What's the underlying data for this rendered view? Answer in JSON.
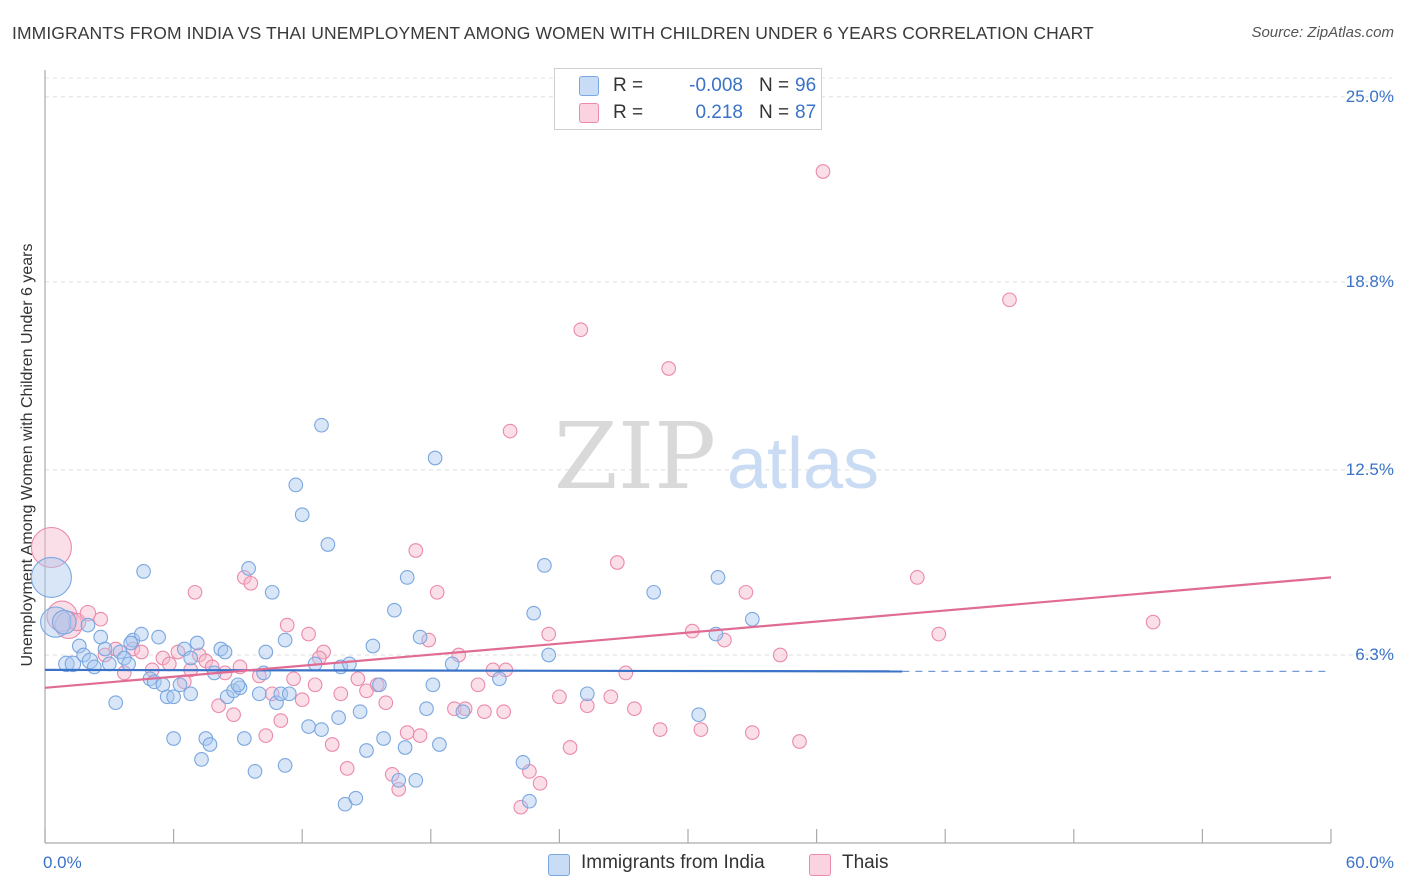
{
  "header": {
    "title": "IMMIGRANTS FROM INDIA VS THAI UNEMPLOYMENT AMONG WOMEN WITH CHILDREN UNDER 6 YEARS CORRELATION CHART",
    "source": "Source: ZipAtlas.com"
  },
  "watermark": {
    "zip": "ZIP",
    "atlas": "atlas"
  },
  "legend_top": {
    "r_label": "R =",
    "n_label": "N =",
    "rows": [
      {
        "r": "-0.008",
        "n": "96",
        "color": "#a9c8f0"
      },
      {
        "r": "0.218",
        "n": "87",
        "color": "#f5b8cb"
      }
    ]
  },
  "colors": {
    "india_fill": "#a9c8f0",
    "india_stroke": "#7ba7e0",
    "india_line": "#3a72c8",
    "thai_fill": "#f5b8cb",
    "thai_stroke": "#eb8aaa",
    "thai_line": "#e06c93",
    "tick_text": "#3a72c8"
  },
  "chart_data": {
    "type": "scatter",
    "title": "IMMIGRANTS FROM INDIA VS THAI UNEMPLOYMENT AMONG WOMEN WITH CHILDREN UNDER 6 YEARS CORRELATION CHART",
    "xlabel": "",
    "ylabel": "Unemployment Among Women with Children Under 6 years",
    "xlim": [
      0,
      60
    ],
    "ylim": [
      0,
      25.9
    ],
    "x_tick_labels": [
      "0.0%",
      "60.0%"
    ],
    "y_ticks": [
      6.3,
      12.5,
      18.8,
      25.0
    ],
    "y_tick_labels": [
      "6.3%",
      "12.5%",
      "18.8%",
      "25.0%"
    ],
    "grid": "horizontal dashed",
    "legend_position": "bottom",
    "series": [
      {
        "name": "Immigrants from India",
        "r": -0.008,
        "n": 96,
        "trend": {
          "x0": 0,
          "y0": 5.8,
          "x1": 40,
          "y1": 5.75,
          "dashed_to": 60
        },
        "points": [
          [
            0.3,
            8.9,
            1.6
          ],
          [
            0.5,
            7.4,
            1.3
          ],
          [
            0.9,
            7.4,
            1.1
          ],
          [
            1.0,
            6.0,
            0.9
          ],
          [
            1.3,
            6.0,
            0.9
          ],
          [
            1.6,
            6.6,
            0.8
          ],
          [
            1.8,
            6.3,
            0.8
          ],
          [
            2.1,
            6.1,
            0.9
          ],
          [
            2.3,
            5.9,
            0.8
          ],
          [
            2.6,
            6.9,
            0.8
          ],
          [
            2.8,
            6.5,
            0.8
          ],
          [
            3.3,
            4.7,
            0.8
          ],
          [
            3.5,
            6.4,
            0.8
          ],
          [
            3.7,
            6.2,
            0.8
          ],
          [
            3.9,
            6.0,
            0.8
          ],
          [
            4.1,
            6.8,
            0.8
          ],
          [
            4.5,
            7.0,
            0.8
          ],
          [
            4.6,
            9.1,
            0.8
          ],
          [
            4.9,
            5.5,
            0.8
          ],
          [
            5.1,
            5.4,
            0.8
          ],
          [
            5.3,
            6.9,
            0.8
          ],
          [
            5.5,
            5.3,
            0.8
          ],
          [
            5.7,
            4.9,
            0.8
          ],
          [
            6.0,
            4.9,
            0.8
          ],
          [
            6.0,
            3.5,
            0.8
          ],
          [
            6.3,
            5.3,
            0.8
          ],
          [
            6.5,
            6.5,
            0.8
          ],
          [
            6.8,
            5.0,
            0.8
          ],
          [
            7.1,
            6.7,
            0.8
          ],
          [
            7.3,
            2.8,
            0.8
          ],
          [
            7.5,
            3.5,
            0.8
          ],
          [
            7.7,
            3.3,
            0.8
          ],
          [
            7.9,
            5.7,
            0.8
          ],
          [
            8.2,
            6.5,
            0.8
          ],
          [
            8.4,
            6.4,
            0.8
          ],
          [
            8.5,
            4.9,
            0.8
          ],
          [
            8.8,
            5.1,
            0.8
          ],
          [
            9.1,
            5.2,
            0.8
          ],
          [
            9.3,
            3.5,
            0.8
          ],
          [
            9.5,
            9.2,
            0.8
          ],
          [
            9.8,
            2.4,
            0.8
          ],
          [
            10.0,
            5.0,
            0.8
          ],
          [
            10.2,
            5.7,
            0.8
          ],
          [
            10.3,
            6.4,
            0.8
          ],
          [
            10.6,
            8.4,
            0.8
          ],
          [
            10.8,
            4.7,
            0.8
          ],
          [
            11.0,
            5.0,
            0.8
          ],
          [
            11.2,
            2.6,
            0.8
          ],
          [
            11.4,
            5.0,
            0.8
          ],
          [
            11.7,
            12.0,
            0.8
          ],
          [
            12.0,
            11.0,
            0.8
          ],
          [
            12.3,
            3.9,
            0.8
          ],
          [
            12.6,
            6.0,
            0.8
          ],
          [
            12.9,
            3.8,
            0.8
          ],
          [
            12.9,
            14.0,
            0.8
          ],
          [
            13.2,
            10.0,
            0.8
          ],
          [
            13.7,
            4.2,
            0.8
          ],
          [
            13.8,
            5.9,
            0.8
          ],
          [
            14.0,
            1.3,
            0.8
          ],
          [
            14.2,
            6.0,
            0.8
          ],
          [
            14.5,
            1.5,
            0.8
          ],
          [
            15.0,
            3.1,
            0.8
          ],
          [
            15.3,
            6.6,
            0.8
          ],
          [
            15.6,
            5.3,
            0.8
          ],
          [
            15.8,
            3.5,
            0.8
          ],
          [
            16.3,
            7.8,
            0.8
          ],
          [
            16.5,
            2.1,
            0.8
          ],
          [
            16.8,
            3.2,
            0.8
          ],
          [
            16.9,
            8.9,
            0.8
          ],
          [
            17.3,
            2.1,
            0.8
          ],
          [
            17.5,
            6.9,
            0.8
          ],
          [
            17.8,
            4.5,
            0.8
          ],
          [
            18.1,
            5.3,
            0.8
          ],
          [
            18.2,
            12.9,
            0.8
          ],
          [
            18.4,
            3.3,
            0.8
          ],
          [
            19.0,
            6.0,
            0.8
          ],
          [
            19.5,
            4.4,
            0.8
          ],
          [
            21.2,
            5.5,
            0.8
          ],
          [
            22.3,
            2.7,
            0.8
          ],
          [
            22.6,
            1.4,
            0.8
          ],
          [
            22.8,
            7.7,
            0.8
          ],
          [
            23.3,
            9.3,
            0.8
          ],
          [
            23.5,
            6.3,
            0.8
          ],
          [
            25.3,
            5.0,
            0.8
          ],
          [
            28.4,
            8.4,
            0.8
          ],
          [
            30.5,
            4.3,
            0.8
          ],
          [
            31.3,
            7.0,
            0.8
          ],
          [
            31.4,
            8.9,
            0.8
          ],
          [
            33.0,
            7.5,
            0.8
          ],
          [
            4.0,
            6.7,
            0.8
          ],
          [
            2.0,
            7.3,
            0.8
          ],
          [
            3.0,
            6.0,
            0.8
          ],
          [
            6.8,
            6.2,
            0.8
          ],
          [
            9.0,
            5.3,
            0.8
          ],
          [
            11.2,
            6.8,
            0.8
          ],
          [
            14.7,
            4.4,
            0.8
          ]
        ]
      },
      {
        "name": "Thais",
        "r": 0.218,
        "n": 87,
        "trend": {
          "x0": 0,
          "y0": 5.2,
          "x1": 60,
          "y1": 8.9
        },
        "points": [
          [
            0.3,
            9.9,
            1.6
          ],
          [
            0.8,
            7.6,
            1.3
          ],
          [
            1.1,
            7.3,
            1.2
          ],
          [
            1.5,
            7.4,
            1.0
          ],
          [
            2.0,
            7.7,
            0.9
          ],
          [
            2.6,
            7.5,
            0.8
          ],
          [
            2.8,
            6.3,
            0.8
          ],
          [
            3.3,
            6.5,
            0.8
          ],
          [
            3.7,
            5.7,
            0.8
          ],
          [
            4.1,
            6.5,
            0.8
          ],
          [
            4.5,
            6.4,
            0.8
          ],
          [
            5.0,
            5.8,
            0.8
          ],
          [
            5.5,
            6.2,
            0.8
          ],
          [
            5.8,
            6.0,
            0.8
          ],
          [
            6.2,
            6.4,
            0.8
          ],
          [
            6.5,
            5.4,
            0.8
          ],
          [
            6.8,
            5.8,
            0.8
          ],
          [
            7.0,
            8.4,
            0.8
          ],
          [
            7.2,
            6.3,
            0.8
          ],
          [
            7.5,
            6.1,
            0.8
          ],
          [
            7.8,
            5.9,
            0.8
          ],
          [
            8.1,
            4.6,
            0.8
          ],
          [
            8.4,
            5.7,
            0.8
          ],
          [
            8.8,
            4.3,
            0.8
          ],
          [
            9.1,
            5.9,
            0.8
          ],
          [
            9.3,
            8.9,
            0.8
          ],
          [
            9.6,
            8.7,
            0.8
          ],
          [
            10.0,
            5.6,
            0.8
          ],
          [
            10.3,
            3.6,
            0.8
          ],
          [
            10.6,
            5.0,
            0.8
          ],
          [
            11.0,
            4.1,
            0.8
          ],
          [
            11.3,
            7.3,
            0.8
          ],
          [
            11.6,
            5.5,
            0.8
          ],
          [
            12.0,
            4.8,
            0.8
          ],
          [
            12.3,
            7.0,
            0.8
          ],
          [
            12.6,
            5.3,
            0.8
          ],
          [
            13.0,
            6.4,
            0.8
          ],
          [
            13.4,
            3.3,
            0.8
          ],
          [
            13.8,
            5.0,
            0.8
          ],
          [
            14.1,
            2.5,
            0.8
          ],
          [
            14.6,
            5.5,
            0.8
          ],
          [
            15.0,
            5.1,
            0.8
          ],
          [
            15.5,
            5.3,
            0.8
          ],
          [
            15.9,
            4.7,
            0.8
          ],
          [
            16.2,
            2.3,
            0.8
          ],
          [
            16.5,
            1.8,
            0.8
          ],
          [
            16.9,
            3.7,
            0.8
          ],
          [
            17.3,
            9.8,
            0.8
          ],
          [
            17.5,
            3.6,
            0.8
          ],
          [
            17.9,
            6.8,
            0.8
          ],
          [
            18.3,
            8.4,
            0.8
          ],
          [
            19.1,
            4.5,
            0.8
          ],
          [
            19.6,
            4.5,
            0.8
          ],
          [
            20.2,
            5.3,
            0.8
          ],
          [
            20.5,
            4.4,
            0.8
          ],
          [
            20.9,
            5.8,
            0.8
          ],
          [
            21.4,
            4.4,
            0.8
          ],
          [
            21.7,
            13.8,
            0.8
          ],
          [
            22.2,
            1.2,
            0.8
          ],
          [
            22.6,
            2.4,
            0.8
          ],
          [
            23.1,
            2.0,
            0.8
          ],
          [
            23.5,
            7.0,
            0.8
          ],
          [
            24.0,
            4.9,
            0.8
          ],
          [
            24.5,
            3.2,
            0.8
          ],
          [
            25.0,
            17.2,
            0.8
          ],
          [
            25.3,
            4.6,
            0.8
          ],
          [
            26.7,
            9.4,
            0.8
          ],
          [
            27.1,
            5.7,
            0.8
          ],
          [
            27.5,
            4.5,
            0.8
          ],
          [
            28.7,
            3.8,
            0.8
          ],
          [
            29.1,
            15.9,
            0.8
          ],
          [
            30.2,
            7.1,
            0.8
          ],
          [
            30.6,
            3.8,
            0.8
          ],
          [
            31.7,
            6.8,
            0.8
          ],
          [
            32.7,
            8.4,
            0.8
          ],
          [
            33.0,
            3.7,
            0.8
          ],
          [
            34.3,
            6.3,
            0.8
          ],
          [
            35.2,
            3.4,
            0.8
          ],
          [
            36.3,
            22.5,
            0.8
          ],
          [
            40.7,
            8.9,
            0.8
          ],
          [
            41.7,
            7.0,
            0.8
          ],
          [
            45.0,
            18.2,
            0.8
          ],
          [
            51.7,
            7.4,
            0.8
          ],
          [
            26.4,
            4.9,
            0.8
          ],
          [
            19.3,
            6.3,
            0.8
          ],
          [
            21.5,
            5.8,
            0.8
          ],
          [
            12.8,
            6.2,
            0.8
          ]
        ]
      }
    ]
  }
}
